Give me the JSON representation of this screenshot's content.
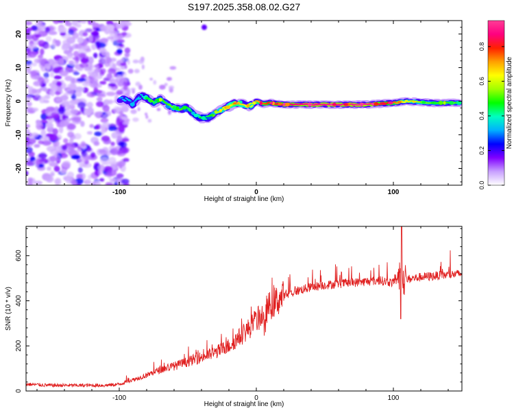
{
  "chart_data": [
    {
      "type": "heatmap",
      "title": "S197.2025.358.08.02.G27",
      "xlabel": "Height of straight line (km)",
      "ylabel": "Frequency (Hz)",
      "xlim": [
        -168,
        150
      ],
      "ylim": [
        -25,
        24
      ],
      "xticks": [
        -100,
        0,
        100
      ],
      "xtick_labels": [
        "-100",
        "0",
        "100"
      ],
      "yticks": [
        -20,
        -10,
        0,
        10,
        20
      ],
      "ytick_labels": [
        "-20",
        "-10",
        "0",
        "10",
        "20"
      ],
      "colorbar": {
        "label": "Normalized spectral amplitude",
        "ticks": [
          0.0,
          0.2,
          0.4,
          0.6,
          0.8
        ],
        "tick_labels": [
          "0.0",
          "0.2",
          "0.4",
          "0.6",
          "0.8"
        ],
        "range": [
          0,
          0.95
        ],
        "colormap": [
          "#ffffff",
          "#c8a0ff",
          "#8000ff",
          "#0000ff",
          "#00b0ff",
          "#00ffc0",
          "#00ff00",
          "#a0ff00",
          "#ffff00",
          "#ffa000",
          "#ff2000",
          "#ff0080",
          "#ff3c96"
        ]
      },
      "ridge": {
        "x": [
          -100,
          -95,
          -90,
          -85,
          -80,
          -75,
          -70,
          -65,
          -60,
          -55,
          -50,
          -45,
          -40,
          -35,
          -30,
          -25,
          -20,
          -15,
          -10,
          -5,
          0,
          5,
          10,
          20,
          40,
          60,
          80,
          100,
          110,
          120,
          130,
          140,
          148
        ],
        "freq": [
          0.5,
          0.5,
          -1,
          1.5,
          1,
          -0.5,
          0.5,
          -1,
          -2,
          -2.2,
          -2,
          -4,
          -5,
          -5,
          -3.5,
          -2.5,
          -1.5,
          -0.5,
          -0.8,
          -1.5,
          0,
          -0.8,
          -0.5,
          -1,
          -1,
          -1,
          -1,
          -0.5,
          0,
          -0.3,
          -0.5,
          -0.5,
          -0.5
        ],
        "amplitude": [
          0.3,
          0.35,
          0.3,
          0.35,
          0.4,
          0.45,
          0.5,
          0.5,
          0.55,
          0.5,
          0.45,
          0.4,
          0.4,
          0.45,
          0.55,
          0.6,
          0.65,
          0.7,
          0.65,
          0.6,
          0.7,
          0.75,
          0.8,
          0.85,
          0.9,
          0.9,
          0.92,
          0.75,
          0.6,
          0.55,
          0.5,
          0.5,
          0.5
        ]
      },
      "noise_region_x": [
        -168,
        -100
      ]
    },
    {
      "type": "line",
      "xlabel": "Height of straight line (km)",
      "ylabel": "SNR (10 * v/v)",
      "xlim": [
        -168,
        150
      ],
      "ylim": [
        0,
        730
      ],
      "xticks": [
        -100,
        0,
        100
      ],
      "xtick_labels": [
        "-100",
        "0",
        "100"
      ],
      "yticks": [
        0,
        200,
        400,
        600
      ],
      "ytick_labels": [
        "0",
        "200",
        "400",
        "600"
      ],
      "series": [
        {
          "name": "SNR",
          "color": "#e02020",
          "x": [
            -168,
            -150,
            -130,
            -110,
            -100,
            -90,
            -80,
            -70,
            -60,
            -50,
            -40,
            -30,
            -20,
            -10,
            0,
            10,
            20,
            30,
            40,
            50,
            60,
            70,
            80,
            90,
            100,
            105,
            110,
            120,
            130,
            140,
            150
          ],
          "values": [
            30,
            25,
            25,
            25,
            30,
            50,
            70,
            95,
            110,
            130,
            150,
            170,
            200,
            250,
            310,
            380,
            420,
            445,
            460,
            470,
            475,
            480,
            485,
            490,
            480,
            500,
            495,
            505,
            510,
            515,
            520
          ]
        }
      ],
      "annotations": [
        {
          "x": 106,
          "peak": 730,
          "trough": 320
        }
      ]
    }
  ]
}
